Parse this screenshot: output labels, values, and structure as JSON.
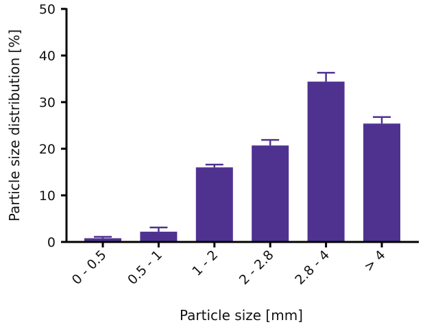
{
  "chart_data": {
    "type": "bar",
    "title": "",
    "xlabel": "Particle size [mm]",
    "ylabel": "Particle size distribution [%]",
    "categories": [
      "0 - 0.5",
      "0.5 - 1",
      "1 - 2",
      "2 - 2.8",
      "2.8 - 4",
      "> 4"
    ],
    "values": [
      0.8,
      2.2,
      16.0,
      20.7,
      34.4,
      25.4
    ],
    "error_upper": [
      1.1,
      3.1,
      16.6,
      21.9,
      36.3,
      26.8
    ],
    "ylim": [
      0,
      50
    ],
    "yticks": [
      0,
      10,
      20,
      30,
      40,
      50
    ],
    "grid": false,
    "bar_color": "#4f3290"
  }
}
